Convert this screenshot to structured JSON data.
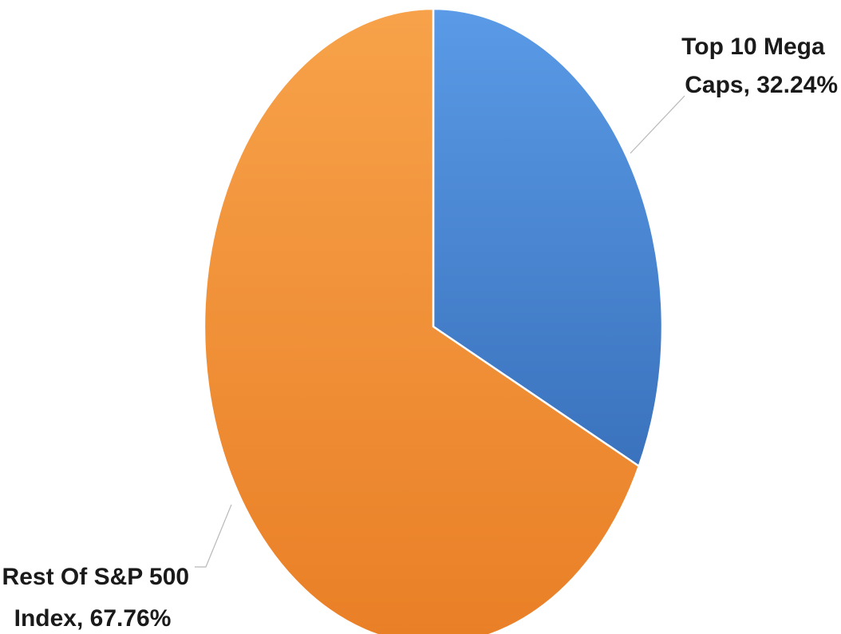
{
  "chart_data": {
    "type": "pie",
    "title": "",
    "slices": [
      {
        "name": "Top 10 Mega Caps",
        "value": 32.24,
        "label_lines": [
          "Top 10 Mega",
          "Caps, 32.24%"
        ],
        "color": "#4a8ad8"
      },
      {
        "name": "Rest Of S&P 500 Index",
        "value": 67.76,
        "label_lines": [
          "Rest Of S&P 500",
          "Index, 67.76%"
        ],
        "color": "#f08a30"
      }
    ],
    "start_angle_deg": 0,
    "direction": "clockwise",
    "legend": "none"
  }
}
